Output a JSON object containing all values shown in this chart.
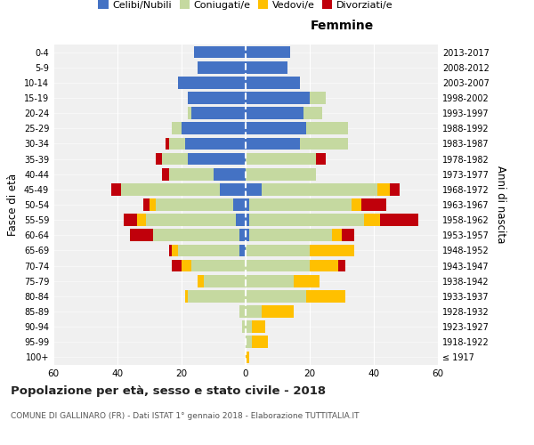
{
  "age_groups": [
    "100+",
    "95-99",
    "90-94",
    "85-89",
    "80-84",
    "75-79",
    "70-74",
    "65-69",
    "60-64",
    "55-59",
    "50-54",
    "45-49",
    "40-44",
    "35-39",
    "30-34",
    "25-29",
    "20-24",
    "15-19",
    "10-14",
    "5-9",
    "0-4"
  ],
  "birth_years": [
    "≤ 1917",
    "1918-1922",
    "1923-1927",
    "1928-1932",
    "1933-1937",
    "1938-1942",
    "1943-1947",
    "1948-1952",
    "1953-1957",
    "1958-1962",
    "1963-1967",
    "1968-1972",
    "1973-1977",
    "1978-1982",
    "1983-1987",
    "1988-1992",
    "1993-1997",
    "1998-2002",
    "2003-2007",
    "2008-2012",
    "2013-2017"
  ],
  "male": {
    "celibi": [
      0,
      0,
      0,
      0,
      0,
      0,
      0,
      2,
      2,
      3,
      4,
      8,
      10,
      18,
      19,
      20,
      17,
      18,
      21,
      15,
      16
    ],
    "coniugati": [
      0,
      0,
      1,
      2,
      18,
      13,
      17,
      19,
      27,
      28,
      24,
      31,
      14,
      8,
      5,
      3,
      1,
      0,
      0,
      0,
      0
    ],
    "vedovi": [
      0,
      0,
      0,
      0,
      1,
      2,
      3,
      2,
      0,
      3,
      2,
      0,
      0,
      0,
      0,
      0,
      0,
      0,
      0,
      0,
      0
    ],
    "divorziati": [
      0,
      0,
      0,
      0,
      0,
      0,
      3,
      1,
      7,
      4,
      2,
      3,
      2,
      2,
      1,
      0,
      0,
      0,
      0,
      0,
      0
    ]
  },
  "female": {
    "nubili": [
      0,
      0,
      0,
      0,
      0,
      0,
      0,
      0,
      1,
      1,
      1,
      5,
      0,
      0,
      17,
      19,
      18,
      20,
      17,
      13,
      14
    ],
    "coniugate": [
      0,
      2,
      2,
      5,
      19,
      15,
      20,
      20,
      26,
      36,
      32,
      36,
      22,
      22,
      15,
      13,
      6,
      5,
      0,
      0,
      0
    ],
    "vedove": [
      1,
      5,
      4,
      10,
      12,
      8,
      9,
      14,
      3,
      5,
      3,
      4,
      0,
      0,
      0,
      0,
      0,
      0,
      0,
      0,
      0
    ],
    "divorziate": [
      0,
      0,
      0,
      0,
      0,
      0,
      2,
      0,
      4,
      12,
      8,
      3,
      0,
      3,
      0,
      0,
      0,
      0,
      0,
      0,
      0
    ]
  },
  "colors": {
    "celibi": "#4472c4",
    "coniugati": "#c5d9a0",
    "vedovi": "#ffc000",
    "divorziati": "#c0000b"
  },
  "title": "Popolazione per età, sesso e stato civile - 2018",
  "subtitle": "COMUNE DI GALLINARO (FR) - Dati ISTAT 1° gennaio 2018 - Elaborazione TUTTITALIA.IT",
  "xlabel_right": "Femmine",
  "ylabel": "Fasce di età",
  "ylabel_right": "Anni di nascita",
  "legend_labels": [
    "Celibi/Nubili",
    "Coniugati/e",
    "Vedovi/e",
    "Divorziati/e"
  ],
  "xlim": 60,
  "background_color": "#ffffff",
  "plot_bg": "#f0f0f0",
  "grid_color": "#cccccc"
}
